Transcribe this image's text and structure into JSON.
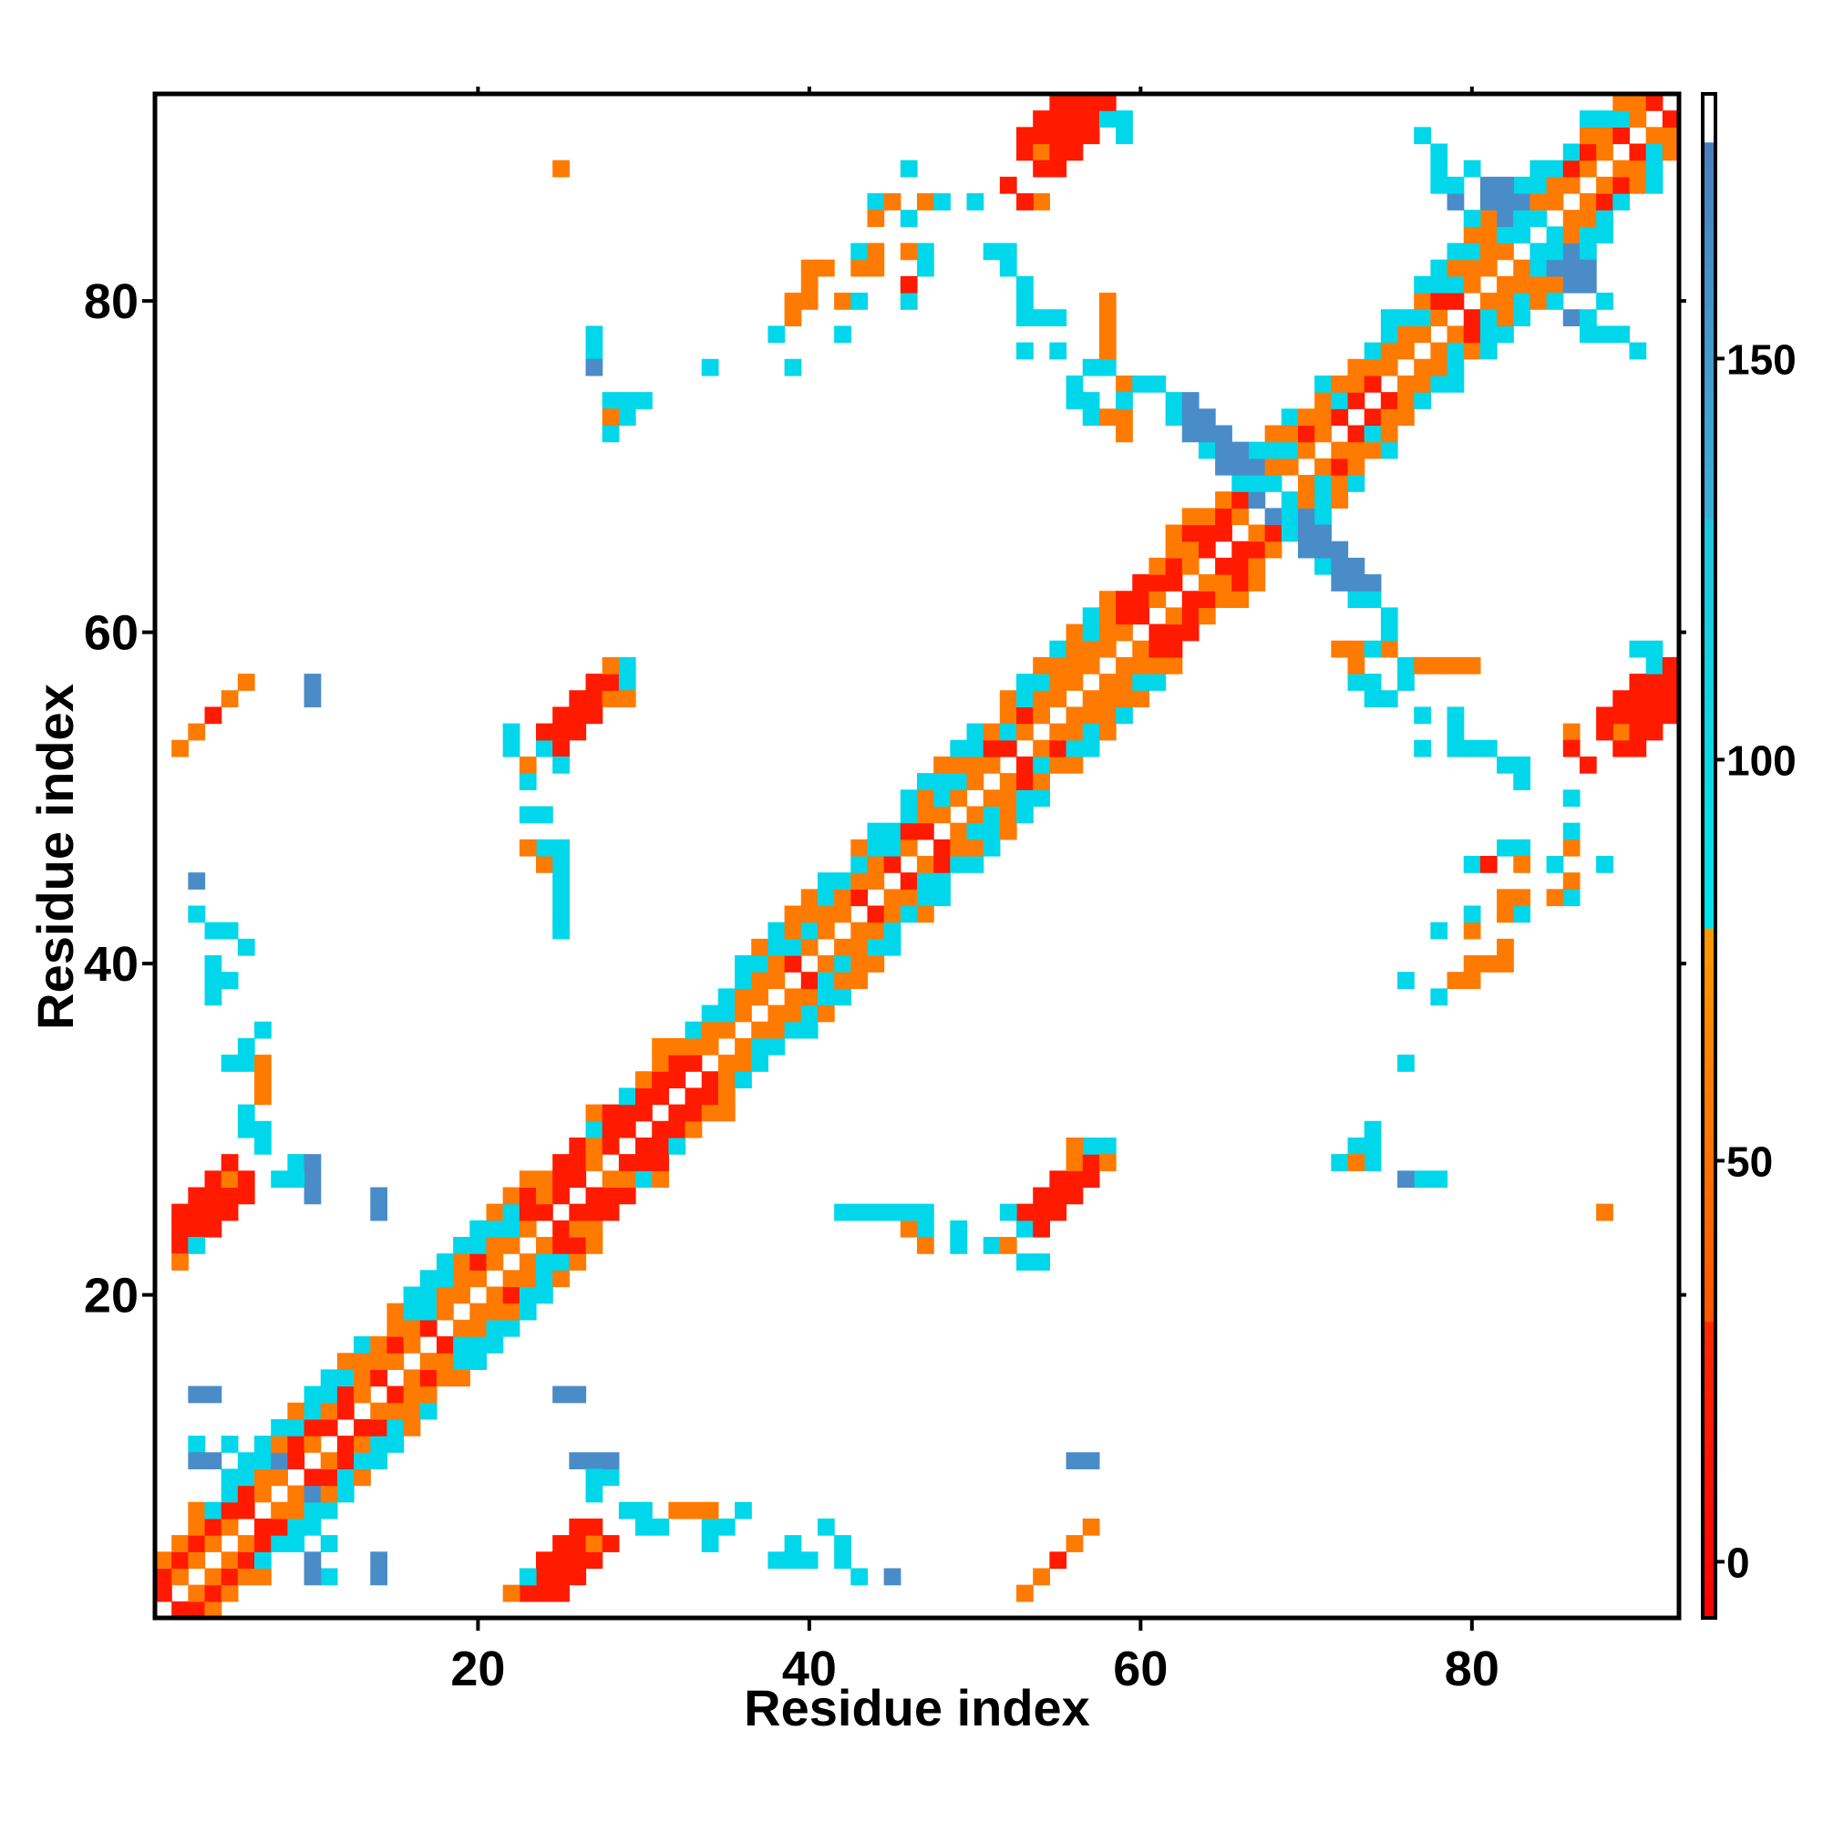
{
  "chart_data": {
    "type": "heatmap",
    "title": "",
    "xlabel": "Residue index",
    "ylabel": "Residue index",
    "xlim": [
      1,
      92
    ],
    "ylim": [
      1,
      92
    ],
    "x_ticks": [
      20,
      40,
      60,
      80
    ],
    "y_ticks": [
      20,
      40,
      60,
      80
    ],
    "colorbar": {
      "range": [
        -7,
        183
      ],
      "ticks": [
        0,
        50,
        100,
        150
      ],
      "bands": [
        {
          "from": -7,
          "to": 30,
          "colors": [
            "#ff0000",
            "#ff2a00"
          ]
        },
        {
          "from": 30,
          "to": 79,
          "colors": [
            "#ff5500",
            "#ff9900"
          ]
        },
        {
          "from": 79,
          "to": 130,
          "colors": [
            "#00e5ee",
            "#22c4dd"
          ]
        },
        {
          "from": 130,
          "to": 177,
          "colors": [
            "#3ab0d8",
            "#4a7fbf"
          ]
        },
        {
          "from": 177,
          "to": 183,
          "colors": [
            "#ffffff",
            "#ffffff"
          ]
        }
      ]
    },
    "palette": {
      "red": "#ff1a00",
      "orange": "#ff7a00",
      "cyan": "#00d7ea",
      "blue": "#4a8cc8"
    },
    "diagonal": {
      "from": 1,
      "to": 92,
      "segments": [
        {
          "from": 1,
          "to": 6,
          "mix": "red"
        },
        {
          "from": 6,
          "to": 23,
          "mix": "helix"
        },
        {
          "from": 23,
          "to": 35,
          "mix": "red"
        },
        {
          "from": 35,
          "to": 58,
          "mix": "helix"
        },
        {
          "from": 58,
          "to": 67,
          "mix": "red"
        },
        {
          "from": 67,
          "to": 92,
          "mix": "helix"
        }
      ]
    },
    "blobs": [
      {
        "x": 26,
        "y": 4,
        "rx": 2.8,
        "ry": 1.4,
        "angle": 45,
        "color": "red"
      },
      {
        "x": 26,
        "y": 55,
        "rx": 3.0,
        "ry": 1.4,
        "angle": 45,
        "color": "red"
      },
      {
        "x": 4,
        "y": 25,
        "rx": 3.0,
        "ry": 1.4,
        "angle": 45,
        "color": "red"
      },
      {
        "x": 55,
        "y": 26,
        "rx": 3.0,
        "ry": 1.4,
        "angle": 45,
        "color": "red"
      },
      {
        "x": 55,
        "y": 91,
        "rx": 3.2,
        "ry": 1.2,
        "angle": 45,
        "color": "red"
      },
      {
        "x": 90,
        "y": 56,
        "rx": 3.0,
        "ry": 1.2,
        "angle": 45,
        "color": "red"
      },
      {
        "x": 66,
        "y": 70,
        "rx": 6.5,
        "ry": 1.1,
        "angle": -45,
        "color": "blue"
      },
      {
        "x": 70,
        "y": 66,
        "rx": 6.5,
        "ry": 1.1,
        "angle": -45,
        "color": "blue"
      },
      {
        "x": 83,
        "y": 85,
        "rx": 4.0,
        "ry": 1.0,
        "angle": -45,
        "color": "blue"
      },
      {
        "x": 85,
        "y": 83,
        "rx": 4.0,
        "ry": 1.0,
        "angle": -45,
        "color": "blue"
      }
    ],
    "scatter_cells": [
      [
        6,
        57,
        "orange"
      ],
      [
        5,
        56,
        "red"
      ],
      [
        4,
        55,
        "orange"
      ],
      [
        3,
        54,
        "orange"
      ],
      [
        10,
        57,
        "blue"
      ],
      [
        3,
        45,
        "cyan"
      ],
      [
        4,
        42,
        "cyan"
      ],
      [
        5,
        42,
        "cyan"
      ],
      [
        6,
        41,
        "cyan"
      ],
      [
        5,
        39,
        "cyan"
      ],
      [
        4,
        38,
        "cyan"
      ],
      [
        5,
        34,
        "cyan"
      ],
      [
        6,
        34,
        "cyan"
      ],
      [
        7,
        33,
        "cyan"
      ],
      [
        7,
        32,
        "orange"
      ],
      [
        6,
        30,
        "cyan"
      ],
      [
        7,
        29,
        "cyan"
      ],
      [
        9,
        28,
        "cyan"
      ],
      [
        10,
        28,
        "blue"
      ],
      [
        10,
        26,
        "blue"
      ],
      [
        14,
        26,
        "blue"
      ],
      [
        3,
        23,
        "cyan"
      ],
      [
        2,
        22,
        "orange"
      ],
      [
        25,
        88,
        "orange"
      ],
      [
        27,
        78,
        "cyan"
      ],
      [
        27,
        77,
        "blue"
      ],
      [
        28,
        74,
        "cyan"
      ],
      [
        29,
        74,
        "cyan"
      ],
      [
        30,
        74,
        "cyan"
      ],
      [
        29,
        73,
        "cyan"
      ],
      [
        24,
        53,
        "cyan"
      ],
      [
        25,
        52,
        "cyan"
      ],
      [
        24,
        49,
        "cyan"
      ],
      [
        24,
        46,
        "orange"
      ],
      [
        25,
        46,
        "cyan"
      ],
      [
        25,
        45,
        "cyan"
      ],
      [
        25,
        43,
        "blue"
      ],
      [
        25,
        42,
        "cyan"
      ],
      [
        29,
        57,
        "cyan"
      ],
      [
        29,
        56,
        "orange"
      ],
      [
        3,
        14,
        "blue"
      ],
      [
        3,
        11,
        "cyan"
      ],
      [
        3,
        10,
        "blue"
      ],
      [
        4,
        10,
        "cyan"
      ],
      [
        5,
        9,
        "cyan"
      ],
      [
        9,
        9,
        "cyan"
      ],
      [
        10,
        8,
        "blue"
      ],
      [
        10,
        6,
        "cyan"
      ],
      [
        11,
        5,
        "cyan"
      ],
      [
        10,
        4,
        "blue"
      ],
      [
        11,
        3,
        "cyan"
      ],
      [
        14,
        4,
        "blue"
      ],
      [
        25,
        14,
        "blue"
      ],
      [
        26,
        10,
        "blue"
      ],
      [
        27,
        10,
        "blue"
      ],
      [
        27,
        9,
        "cyan"
      ],
      [
        27,
        8,
        "cyan"
      ],
      [
        29,
        7,
        "cyan"
      ],
      [
        30,
        7,
        "cyan"
      ],
      [
        31,
        6,
        "cyan"
      ],
      [
        33,
        7,
        "orange"
      ],
      [
        34,
        7,
        "orange"
      ],
      [
        35,
        6,
        "cyan"
      ],
      [
        36,
        7,
        "cyan"
      ],
      [
        34,
        5,
        "cyan"
      ],
      [
        39,
        4,
        "cyan"
      ],
      [
        40,
        4,
        "cyan"
      ],
      [
        42,
        4,
        "cyan"
      ],
      [
        43,
        3,
        "cyan"
      ],
      [
        45,
        3,
        "blue"
      ],
      [
        54,
        3,
        "orange"
      ],
      [
        55,
        4,
        "red"
      ],
      [
        56,
        5,
        "orange"
      ],
      [
        53,
        2,
        "orange"
      ],
      [
        56,
        10,
        "blue"
      ],
      [
        44,
        86,
        "cyan"
      ],
      [
        45,
        86,
        "orange"
      ],
      [
        47,
        86,
        "orange"
      ],
      [
        48,
        86,
        "cyan"
      ],
      [
        46,
        88,
        "cyan"
      ],
      [
        50,
        86,
        "cyan"
      ],
      [
        44,
        85,
        "orange"
      ],
      [
        47,
        83,
        "red"
      ],
      [
        47,
        82,
        "cyan"
      ],
      [
        44,
        82,
        "orange"
      ],
      [
        40,
        82,
        "orange"
      ],
      [
        41,
        82,
        "orange"
      ],
      [
        40,
        81,
        "orange"
      ],
      [
        43,
        82,
        "orange"
      ],
      [
        38,
        78,
        "cyan"
      ],
      [
        42,
        78,
        "cyan"
      ],
      [
        52,
        83,
        "cyan"
      ],
      [
        52,
        82,
        "cyan"
      ],
      [
        53,
        79,
        "cyan"
      ],
      [
        54,
        79,
        "cyan"
      ],
      [
        55,
        79,
        "cyan"
      ],
      [
        58,
        80,
        "orange"
      ],
      [
        58,
        79,
        "orange"
      ],
      [
        57,
        76,
        "cyan"
      ],
      [
        58,
        76,
        "cyan"
      ],
      [
        56,
        75,
        "cyan"
      ],
      [
        57,
        74,
        "cyan"
      ],
      [
        59,
        75,
        "orange"
      ],
      [
        60,
        75,
        "cyan"
      ],
      [
        61,
        75,
        "cyan"
      ],
      [
        59,
        73,
        "orange"
      ],
      [
        43,
        25,
        "cyan"
      ],
      [
        44,
        25,
        "cyan"
      ],
      [
        46,
        25,
        "cyan"
      ],
      [
        47,
        25,
        "cyan"
      ],
      [
        47,
        24,
        "cyan"
      ],
      [
        47,
        23,
        "orange"
      ],
      [
        49,
        23,
        "cyan"
      ],
      [
        51,
        23,
        "cyan"
      ],
      [
        52,
        23,
        "orange"
      ],
      [
        53,
        22,
        "cyan"
      ],
      [
        54,
        22,
        "cyan"
      ],
      [
        56,
        29,
        "orange"
      ],
      [
        57,
        29,
        "cyan"
      ],
      [
        58,
        29,
        "cyan"
      ],
      [
        58,
        28,
        "orange"
      ],
      [
        73,
        29,
        "cyan"
      ],
      [
        72,
        28,
        "cyan"
      ],
      [
        73,
        28,
        "orange"
      ],
      [
        76,
        27,
        "blue"
      ],
      [
        77,
        27,
        "cyan"
      ],
      [
        76,
        34,
        "cyan"
      ],
      [
        76,
        39,
        "cyan"
      ],
      [
        79,
        39,
        "orange"
      ],
      [
        80,
        39,
        "orange"
      ],
      [
        80,
        40,
        "orange"
      ],
      [
        80,
        42,
        "orange"
      ],
      [
        80,
        43,
        "cyan"
      ],
      [
        82,
        43,
        "orange"
      ],
      [
        83,
        43,
        "cyan"
      ],
      [
        83,
        44,
        "orange"
      ],
      [
        80,
        46,
        "cyan"
      ],
      [
        81,
        46,
        "red"
      ],
      [
        83,
        47,
        "cyan"
      ],
      [
        83,
        46,
        "orange"
      ],
      [
        85,
        46,
        "cyan"
      ],
      [
        83,
        51,
        "cyan"
      ],
      [
        80,
        53,
        "cyan"
      ],
      [
        81,
        53,
        "cyan"
      ],
      [
        77,
        53,
        "cyan"
      ],
      [
        77,
        55,
        "cyan"
      ],
      [
        77,
        58,
        "orange"
      ],
      [
        78,
        58,
        "orange"
      ],
      [
        74,
        56,
        "cyan"
      ],
      [
        73,
        57,
        "cyan"
      ],
      [
        74,
        59,
        "cyan"
      ],
      [
        73,
        58,
        "orange"
      ],
      [
        72,
        59,
        "orange"
      ],
      [
        75,
        59,
        "orange"
      ],
      [
        76,
        58,
        "cyan"
      ],
      [
        88,
        25,
        "orange"
      ],
      [
        91,
        58,
        "cyan"
      ],
      [
        90,
        59,
        "cyan"
      ],
      [
        91,
        59,
        "cyan"
      ],
      [
        86,
        54,
        "orange"
      ],
      [
        86,
        53,
        "red"
      ],
      [
        87,
        52,
        "red"
      ],
      [
        77,
        90,
        "cyan"
      ],
      [
        78,
        88,
        "blue"
      ],
      [
        80,
        88,
        "cyan"
      ],
      [
        81,
        87,
        "blue"
      ],
      [
        84,
        88,
        "cyan"
      ],
      [
        78,
        87,
        "blue"
      ],
      [
        85,
        80,
        "cyan"
      ],
      [
        86,
        79,
        "blue"
      ],
      [
        87,
        79,
        "cyan"
      ],
      [
        89,
        78,
        "cyan"
      ],
      [
        87,
        78,
        "cyan"
      ],
      [
        88,
        78,
        "cyan"
      ]
    ]
  }
}
